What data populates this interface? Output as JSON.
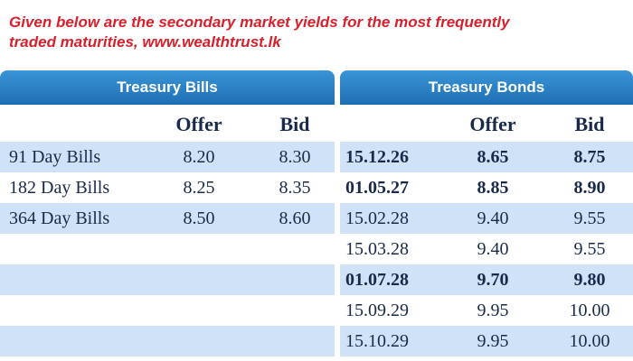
{
  "caption": {
    "line1": "Given below are the secondary market yields for the most frequently",
    "line2": "traded maturities, www.wealthtrust.lk"
  },
  "bills": {
    "title": "Treasury Bills",
    "offer_label": "Offer",
    "bid_label": "Bid",
    "rows": [
      {
        "label": "91 Day Bills",
        "offer": "8.20",
        "bid": "8.30"
      },
      {
        "label": "182 Day Bills",
        "offer": "8.25",
        "bid": "8.35"
      },
      {
        "label": "364 Day Bills",
        "offer": "8.50",
        "bid": "8.60"
      }
    ]
  },
  "bonds": {
    "title": "Treasury Bonds",
    "offer_label": "Offer",
    "bid_label": "Bid",
    "rows": [
      {
        "maturity": "15.12.26",
        "offer": "8.65",
        "bid": "8.75",
        "bold": true
      },
      {
        "maturity": "01.05.27",
        "offer": "8.85",
        "bid": "8.90",
        "bold": true
      },
      {
        "maturity": "15.02.28",
        "offer": "9.40",
        "bid": "9.55",
        "bold": false
      },
      {
        "maturity": "15.03.28",
        "offer": "9.40",
        "bid": "9.55",
        "bold": false
      },
      {
        "maturity": "01.07.28",
        "offer": "9.70",
        "bid": "9.80",
        "bold": true
      },
      {
        "maturity": "15.09.29",
        "offer": "9.95",
        "bid": "10.00",
        "bold": false
      },
      {
        "maturity": "15.10.29",
        "offer": "9.95",
        "bid": "10.00",
        "bold": false
      }
    ]
  },
  "colors": {
    "caption_red": "#d8202c",
    "header_blue": "#1f6fb4",
    "row_blue": "#cfe2f7",
    "text_navy": "#1a2a4a"
  }
}
